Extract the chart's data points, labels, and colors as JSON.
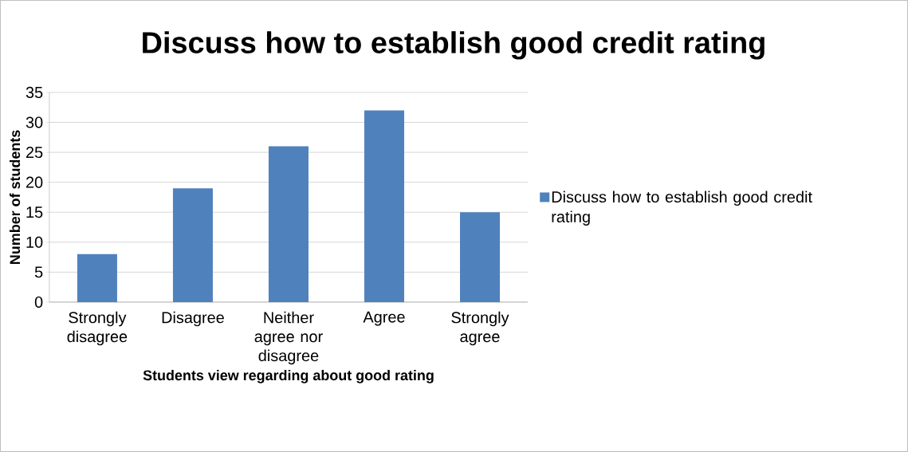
{
  "chart_data": {
    "type": "bar",
    "title": "Discuss how to establish good credit rating",
    "xlabel": "Students view regarding about good rating",
    "ylabel": "Number of students",
    "categories": [
      "Strongly disagree",
      "Disagree",
      "Neither agree nor disagree",
      "Agree",
      "Strongly agree"
    ],
    "series": [
      {
        "name": "Discuss how to establish good credit rating",
        "color": "#4f81bd",
        "values": [
          8,
          19,
          26,
          32,
          15
        ]
      }
    ],
    "ylim": [
      0,
      35
    ],
    "yticks": [
      0,
      5,
      10,
      15,
      20,
      25,
      30,
      35
    ],
    "grid": "y",
    "legend": "right"
  }
}
